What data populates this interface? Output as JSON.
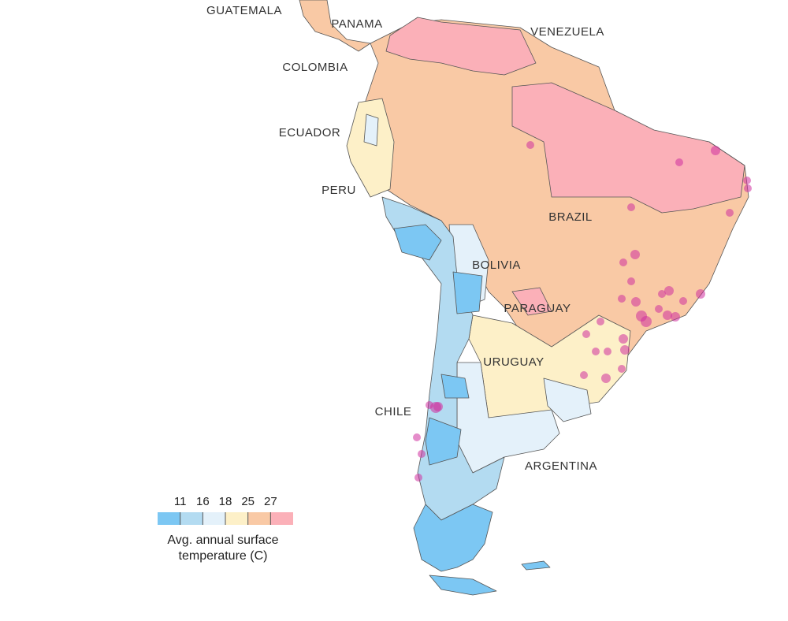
{
  "map": {
    "labels": [
      "GUATEMALA",
      "PANAMA",
      "VENEZUELA",
      "COLOMBIA",
      "ECUADOR",
      "PERU",
      "BRAZIL",
      "BOLIVIA",
      "PARAGUAY",
      "URUGUAY",
      "CHILE",
      "ARGENTINA"
    ]
  },
  "legend": {
    "title": "Avg. annual surface temperature (C)",
    "ticks": [
      11,
      16,
      18,
      25,
      27
    ],
    "colors": [
      "#7cc7f3",
      "#b3dbf1",
      "#e4f1fa",
      "#fdf0c8",
      "#f9c9a5",
      "#fbb0b8"
    ]
  }
}
